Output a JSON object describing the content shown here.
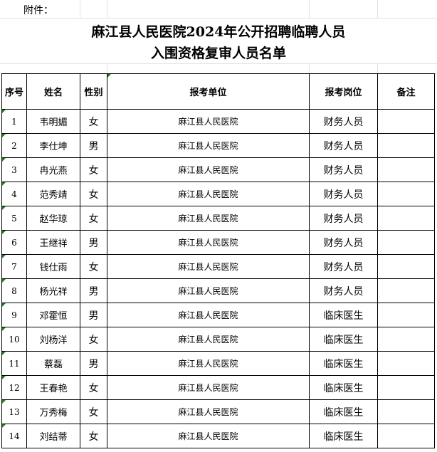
{
  "attachment_label": "附件：",
  "title_line1": "麻江县人民医院2024年公开招聘临聘人员",
  "title_line2": "入围资格复审人员名单",
  "headers": {
    "no": "序号",
    "name": "姓名",
    "gender": "性别",
    "unit": "报考单位",
    "position": "报考岗位",
    "remark": "备注"
  },
  "rows": [
    {
      "no": "1",
      "name": "韦明媚",
      "gender": "女",
      "unit": "麻江县人民医院",
      "position": "财务人员",
      "remark": ""
    },
    {
      "no": "2",
      "name": "李仕坤",
      "gender": "男",
      "unit": "麻江县人民医院",
      "position": "财务人员",
      "remark": ""
    },
    {
      "no": "3",
      "name": "冉光燕",
      "gender": "女",
      "unit": "麻江县人民医院",
      "position": "财务人员",
      "remark": ""
    },
    {
      "no": "4",
      "name": "范秀靖",
      "gender": "女",
      "unit": "麻江县人民医院",
      "position": "财务人员",
      "remark": ""
    },
    {
      "no": "5",
      "name": "赵华琼",
      "gender": "女",
      "unit": "麻江县人民医院",
      "position": "财务人员",
      "remark": ""
    },
    {
      "no": "6",
      "name": "王继祥",
      "gender": "男",
      "unit": "麻江县人民医院",
      "position": "财务人员",
      "remark": ""
    },
    {
      "no": "7",
      "name": "钱仕雨",
      "gender": "女",
      "unit": "麻江县人民医院",
      "position": "财务人员",
      "remark": ""
    },
    {
      "no": "8",
      "name": "杨光祥",
      "gender": "男",
      "unit": "麻江县人民医院",
      "position": "财务人员",
      "remark": ""
    },
    {
      "no": "9",
      "name": "邓霍恒",
      "gender": "男",
      "unit": "麻江县人民医院",
      "position": "临床医生",
      "remark": ""
    },
    {
      "no": "10",
      "name": "刘杨洋",
      "gender": "女",
      "unit": "麻江县人民医院",
      "position": "临床医生",
      "remark": ""
    },
    {
      "no": "11",
      "name": "蔡磊",
      "gender": "男",
      "unit": "麻江县人民医院",
      "position": "临床医生",
      "remark": ""
    },
    {
      "no": "12",
      "name": "王春艳",
      "gender": "女",
      "unit": "麻江县人民医院",
      "position": "临床医生",
      "remark": ""
    },
    {
      "no": "13",
      "name": "万秀梅",
      "gender": "女",
      "unit": "麻江县人民医院",
      "position": "临床医生",
      "remark": ""
    },
    {
      "no": "14",
      "name": "刘结蒂",
      "gender": "女",
      "unit": "麻江县人民医院",
      "position": "临床医生",
      "remark": ""
    }
  ]
}
